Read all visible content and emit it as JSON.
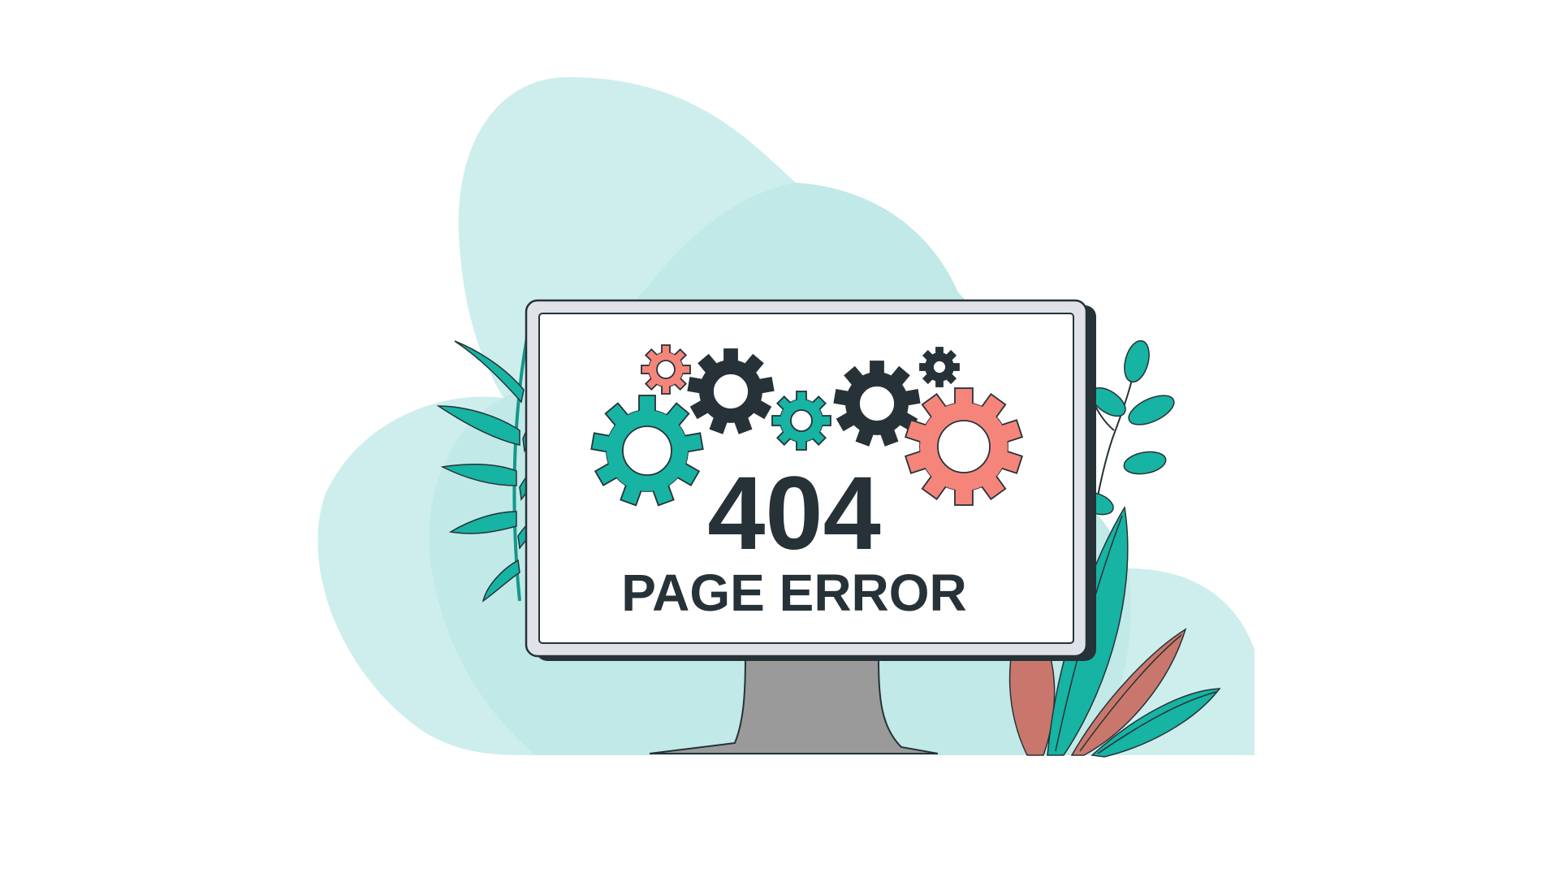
{
  "error": {
    "code": "404",
    "message": "PAGE ERROR"
  },
  "colors": {
    "background": "#ffffff",
    "blob_light": "#cdeeed",
    "blob_mid": "#b8e6e4",
    "teal": "#17b3a3",
    "teal_dark": "#12998b",
    "salmon": "#f5857a",
    "brown_leaf": "#c9776c",
    "gear_dark": "#263238",
    "screen_frame": "#dfe3e7",
    "screen_bg": "#ffffff",
    "stand": "#9a9a9a",
    "outline": "#263238"
  },
  "icons": [
    "teal-gear-icon",
    "salmon-gear-icon",
    "dark-gear-icon",
    "palm-leaf-icon",
    "eucalyptus-branch-icon",
    "leaf-cluster-icon"
  ]
}
